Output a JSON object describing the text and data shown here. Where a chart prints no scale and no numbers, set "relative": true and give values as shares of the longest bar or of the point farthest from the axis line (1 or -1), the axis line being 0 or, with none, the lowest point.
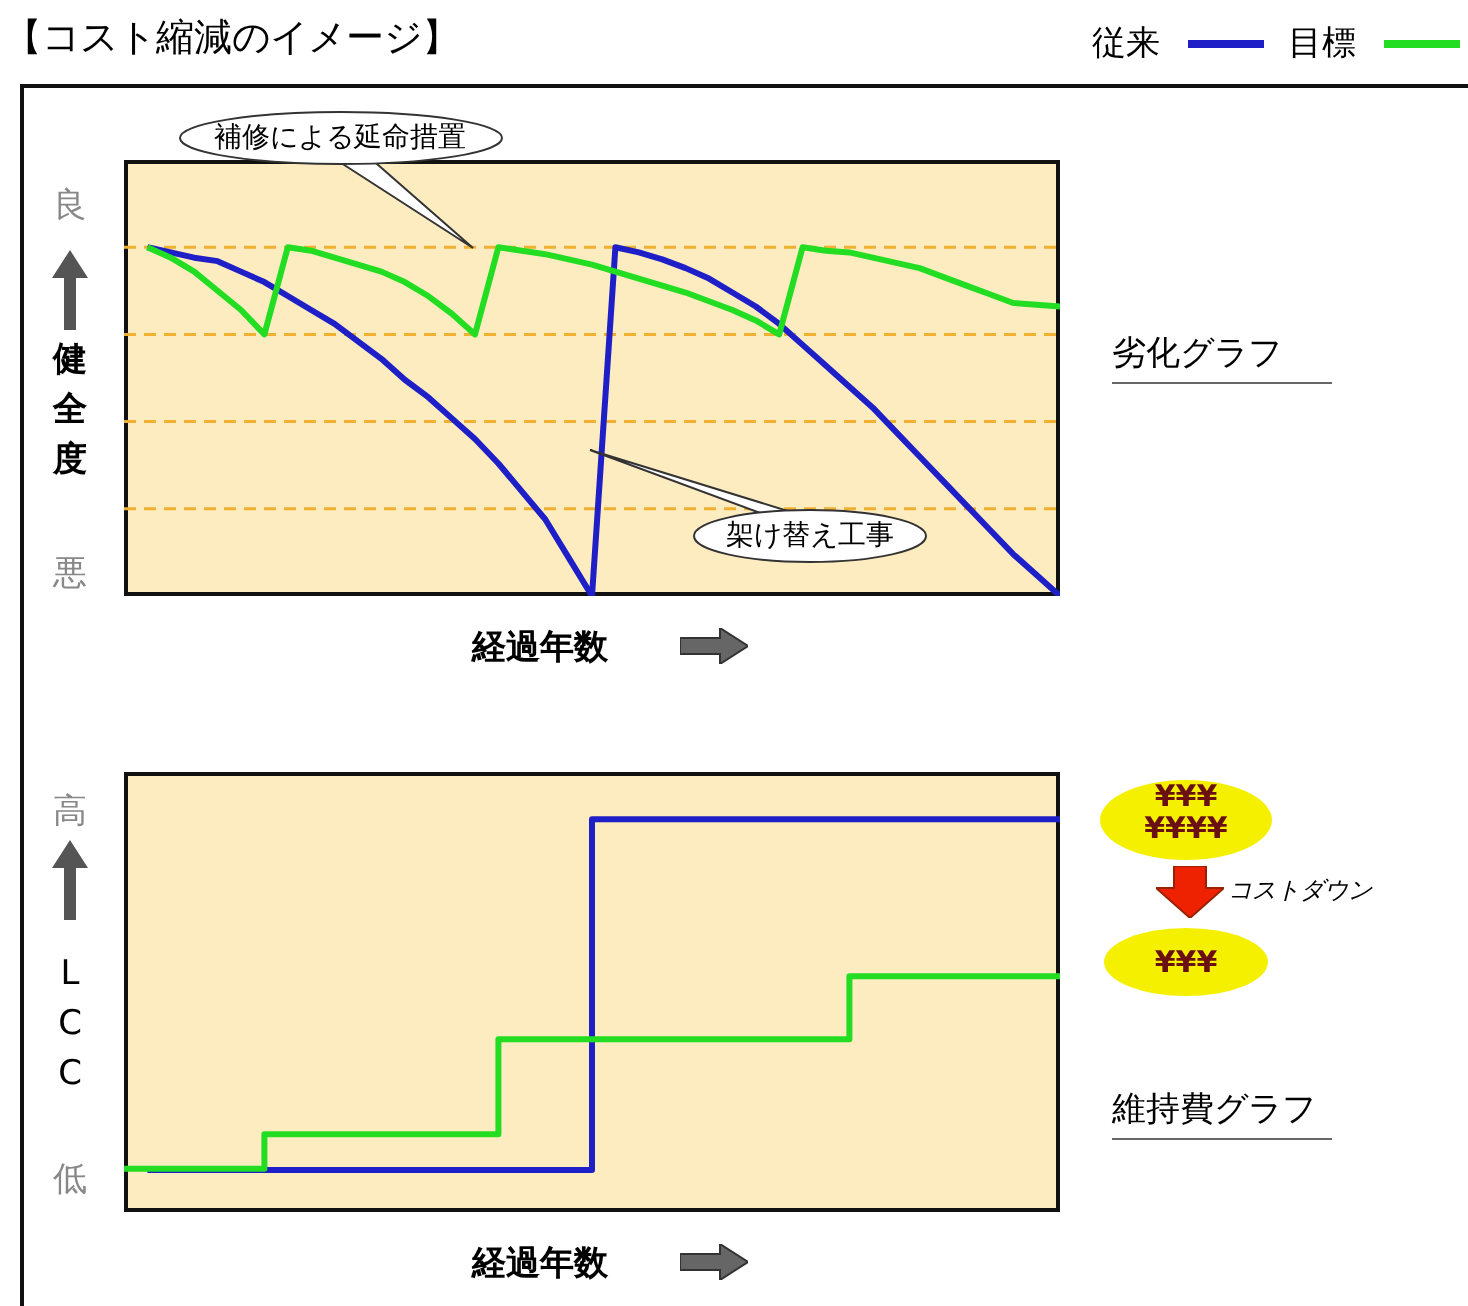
{
  "chart_data": [
    {
      "type": "line",
      "title": "【コスト縮減のイメージ】",
      "relative": true,
      "xlabel": "経過年数",
      "ylabel": "健全度",
      "legend": "top right",
      "categories": [
        null,
        null,
        null,
        null,
        null,
        null,
        null,
        null,
        null,
        null,
        null,
        null,
        null,
        null,
        null,
        null,
        null,
        null,
        null,
        null,
        null,
        null,
        null,
        null,
        null,
        null,
        null,
        null,
        null,
        null,
        null,
        null,
        null,
        null,
        null,
        null,
        null,
        null,
        null,
        null,
        null
      ],
      "series": [
        {
          "name": "従来",
          "color": "#1f1fc8",
          "values": [
            null,
            1,
            0.985,
            0.97,
            0.96,
            0.93,
            0.9,
            0.86,
            0.82,
            0.78,
            0.73,
            0.68,
            0.62,
            0.57,
            0.51,
            0.45,
            0.38,
            0.3,
            0.22,
            0.11,
            0,
            1,
            0.985,
            0.965,
            0.94,
            0.91,
            0.87,
            0.83,
            0.78,
            0.72,
            0.66,
            0.6,
            0.54,
            0.47,
            0.4,
            0.33,
            0.26,
            0.19,
            0.12,
            0.06,
            0
          ]
        },
        {
          "name": "目標",
          "color": "#22dd22",
          "values": [
            null,
            1,
            0.97,
            0.93,
            0.875,
            0.82,
            0.75,
            1,
            0.99,
            0.97,
            0.95,
            0.93,
            0.9,
            0.86,
            0.81,
            0.75,
            1,
            0.99,
            0.98,
            0.965,
            0.95,
            0.93,
            0.91,
            0.89,
            0.87,
            0.845,
            0.82,
            0.79,
            0.75,
            1,
            0.99,
            0.985,
            0.97,
            0.955,
            0.94,
            0.915,
            0.89,
            0.865,
            0.84,
            0.835,
            0.83
          ]
        }
      ],
      "ref_lines": [
        {
          "axis": "y",
          "value": 1,
          "color": "#f0b030",
          "line_style": "dashed"
        },
        {
          "axis": "y",
          "value": 0.75,
          "color": "#f0b030",
          "line_style": "dashed"
        },
        {
          "axis": "y",
          "value": 0.5,
          "color": "#f0b030",
          "line_style": "dashed"
        },
        {
          "axis": "y",
          "value": 0.25,
          "color": "#f0b030",
          "line_style": "dashed"
        }
      ],
      "annotations": [
        "良",
        "悪",
        "劣化グラフ",
        "補修による延命措置",
        "架け替え工事"
      ]
    },
    {
      "type": "step",
      "relative": true,
      "xlabel": "経過年数",
      "ylabel": "LCC",
      "categories": [
        null,
        null,
        null,
        null,
        null,
        null,
        null,
        null,
        null,
        null,
        null,
        null,
        null,
        null,
        null,
        null,
        null,
        null,
        null,
        null,
        null,
        null,
        null,
        null,
        null,
        null,
        null,
        null,
        null,
        null,
        null,
        null,
        null,
        null,
        null,
        null,
        null,
        null,
        null,
        null,
        null
      ],
      "series": [
        {
          "color": "#1f1fc8",
          "values": [
            null,
            0.107,
            0.107,
            0.107,
            0.107,
            0.107,
            0.107,
            0.107,
            0.107,
            0.107,
            0.107,
            0.107,
            0.107,
            0.107,
            0.107,
            0.107,
            0.107,
            0.107,
            0.107,
            0.107,
            1,
            1,
            1,
            1,
            1,
            1,
            1,
            1,
            1,
            1,
            1,
            1,
            1,
            1,
            1,
            1,
            1,
            1,
            1,
            1,
            1
          ]
        },
        {
          "color": "#22dd22",
          "values": [
            0.11,
            0.11,
            0.11,
            0.11,
            0.11,
            0.11,
            0.198,
            0.198,
            0.198,
            0.198,
            0.198,
            0.198,
            0.198,
            0.198,
            0.198,
            0.198,
            0.44,
            0.44,
            0.44,
            0.44,
            0.44,
            0.44,
            0.44,
            0.44,
            0.44,
            0.44,
            0.44,
            0.44,
            0.44,
            0.44,
            0.44,
            0.6,
            0.6,
            0.6,
            0.6,
            0.6,
            0.6,
            0.6,
            0.6,
            0.6,
            0.6
          ]
        }
      ],
      "annotations": [
        "高",
        "低",
        "維持費グラフ",
        "¥¥¥",
        "¥¥¥¥",
        "コストダウン",
        "¥¥¥"
      ]
    }
  ]
}
